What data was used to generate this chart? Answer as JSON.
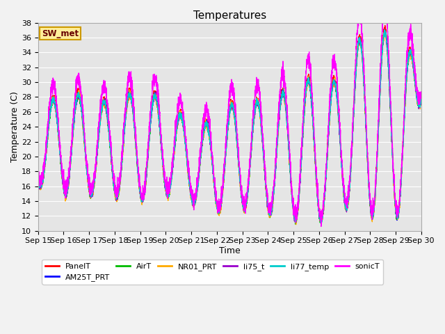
{
  "title": "Temperatures",
  "xlabel": "Time",
  "ylabel": "Temperature (C)",
  "ylim": [
    10,
    38
  ],
  "xlim_days": 15,
  "x_tick_labels": [
    "Sep 15",
    "Sep 16",
    "Sep 17",
    "Sep 18",
    "Sep 19",
    "Sep 20",
    "Sep 21",
    "Sep 22",
    "Sep 23",
    "Sep 24",
    "Sep 25",
    "Sep 26",
    "Sep 27",
    "Sep 28",
    "Sep 29",
    "Sep 30"
  ],
  "series": [
    {
      "name": "PanelT",
      "color": "#ff0000"
    },
    {
      "name": "AM25T_PRT",
      "color": "#0000ff"
    },
    {
      "name": "AirT",
      "color": "#00bb00"
    },
    {
      "name": "NR01_PRT",
      "color": "#ffaa00"
    },
    {
      "name": "li75_t",
      "color": "#9900cc"
    },
    {
      "name": "li77_temp",
      "color": "#00cccc"
    },
    {
      "name": "sonicT",
      "color": "#ff00ff"
    }
  ],
  "sw_met_label": "SW_met",
  "sw_met_border_color": "#cc9900",
  "sw_met_text_color": "#660000",
  "sw_met_bg_color": "#ffee99",
  "plot_bg_color": "#e5e5e5",
  "fig_bg_color": "#f2f2f2",
  "grid_color": "#ffffff",
  "title_fontsize": 11,
  "axis_label_fontsize": 9,
  "tick_fontsize": 8,
  "legend_fontsize": 8,
  "linewidth": 0.9,
  "pts_per_day": 288,
  "n_days": 15,
  "seed": 17
}
